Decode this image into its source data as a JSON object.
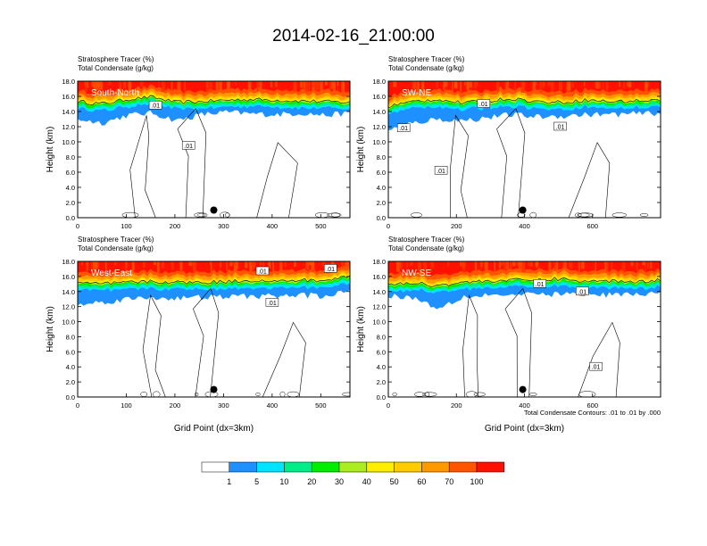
{
  "figure": {
    "title": "2014-02-16_21:00:00",
    "contour_note": "Total Condensate Contours: .01 to .01 by .000"
  },
  "colorbar": {
    "colors": [
      "#ffffff",
      "#1e90ff",
      "#00e5ff",
      "#00ee88",
      "#00ee00",
      "#aaee22",
      "#ffee00",
      "#ffcc00",
      "#ff9900",
      "#ff5500",
      "#ff1100"
    ],
    "labels": [
      "1",
      "5",
      "10",
      "20",
      "30",
      "40",
      "50",
      "60",
      "70",
      "100"
    ]
  },
  "chart_data": [
    {
      "type": "heatmap",
      "panel_label": "South-North",
      "title_line1": "Stratosphere Tracer   (%)",
      "title_line2": "Total Condensate   (g/kg)",
      "xlabel": "",
      "ylabel": "Height (km)",
      "xlim": [
        0,
        560
      ],
      "ylim": [
        0,
        18
      ],
      "xticks": [
        0,
        100,
        200,
        300,
        400,
        500
      ],
      "yticks": [
        0,
        2,
        4,
        6,
        8,
        10,
        12,
        14,
        16,
        18
      ],
      "tropopause_km": [
        14.6,
        14.3,
        14.9,
        15.2,
        14.5,
        14.6,
        14.8,
        14.9,
        14.8,
        14.7,
        14.6,
        14.5
      ],
      "blue_bottom_km": [
        13.0,
        12.5,
        13.5,
        13.8,
        12.8,
        13.6,
        13.9,
        13.7,
        13.6,
        13.8,
        13.5,
        13.8
      ],
      "contour_labels": [
        {
          "x": 160,
          "y": 14.8,
          "text": ".01"
        },
        {
          "x": 228,
          "y": 9.5,
          "text": ".01"
        }
      ],
      "marker": {
        "x": 280,
        "y": 1.0
      }
    },
    {
      "type": "heatmap",
      "panel_label": "SW-NE",
      "title_line1": "Stratosphere Tracer   (%)",
      "title_line2": "Total Condensate   (g/kg)",
      "xlabel": "",
      "ylabel": "Height (km)",
      "xlim": [
        0,
        800
      ],
      "ylim": [
        0,
        18
      ],
      "xticks": [
        0,
        200,
        400,
        600
      ],
      "yticks": [
        0,
        2,
        4,
        6,
        8,
        10,
        12,
        14,
        16,
        18
      ],
      "tropopause_km": [
        14.0,
        14.6,
        14.9,
        14.4,
        14.7,
        15.0,
        14.6,
        14.5,
        14.8,
        14.6,
        14.7,
        14.8
      ],
      "blue_bottom_km": [
        11.5,
        12.5,
        13.0,
        12.8,
        13.2,
        13.6,
        13.3,
        13.4,
        13.6,
        13.6,
        13.7,
        13.8
      ],
      "contour_labels": [
        {
          "x": 45,
          "y": 11.8,
          "text": ".01"
        },
        {
          "x": 155,
          "y": 6.2,
          "text": ".01"
        },
        {
          "x": 280,
          "y": 15.0,
          "text": ".01"
        },
        {
          "x": 505,
          "y": 12.0,
          "text": ".01"
        }
      ],
      "marker": {
        "x": 395,
        "y": 1.0
      }
    },
    {
      "type": "heatmap",
      "panel_label": "West-East",
      "title_line1": "Stratosphere Tracer   (%)",
      "title_line2": "Total Condensate   (g/kg)",
      "xlabel": "Grid Point (dx=3km)",
      "ylabel": "Height (km)",
      "xlim": [
        0,
        560
      ],
      "ylim": [
        0,
        18
      ],
      "xticks": [
        0,
        100,
        200,
        300,
        400,
        500
      ],
      "yticks": [
        0,
        2,
        4,
        6,
        8,
        10,
        12,
        14,
        16,
        18
      ],
      "tropopause_km": [
        14.4,
        14.3,
        14.5,
        14.6,
        14.5,
        14.5,
        14.6,
        14.8,
        14.6,
        14.8,
        14.7,
        15.4
      ],
      "blue_bottom_km": [
        12.2,
        12.6,
        13.0,
        13.2,
        13.1,
        13.2,
        13.3,
        13.4,
        13.4,
        13.5,
        13.4,
        14.0
      ],
      "contour_labels": [
        {
          "x": 380,
          "y": 16.7,
          "text": ".01"
        },
        {
          "x": 400,
          "y": 12.5,
          "text": ".01"
        },
        {
          "x": 520,
          "y": 17.0,
          "text": ".01"
        }
      ],
      "marker": {
        "x": 280,
        "y": 1.0
      }
    },
    {
      "type": "heatmap",
      "panel_label": "NW-SE",
      "title_line1": "Stratosphere Tracer   (%)",
      "title_line2": "Total Condensate   (g/kg)",
      "xlabel": "Grid Point (dx=3km)",
      "ylabel": "Height (km)",
      "xlim": [
        0,
        800
      ],
      "ylim": [
        0,
        18
      ],
      "xticks": [
        0,
        200,
        400,
        600
      ],
      "yticks": [
        0,
        2,
        4,
        6,
        8,
        10,
        12,
        14,
        16,
        18
      ],
      "tropopause_km": [
        14.3,
        14.4,
        14.1,
        14.5,
        14.7,
        14.8,
        14.8,
        15.0,
        14.6,
        14.7,
        14.6,
        14.8
      ],
      "blue_bottom_km": [
        13.5,
        13.2,
        11.8,
        13.3,
        13.6,
        13.5,
        13.6,
        13.7,
        13.5,
        13.6,
        13.6,
        13.8
      ],
      "contour_labels": [
        {
          "x": 445,
          "y": 15.0,
          "text": ".01"
        },
        {
          "x": 570,
          "y": 14.0,
          "text": ".01"
        },
        {
          "x": 610,
          "y": 4.0,
          "text": ".01"
        }
      ],
      "marker": {
        "x": 395,
        "y": 1.0
      }
    }
  ]
}
